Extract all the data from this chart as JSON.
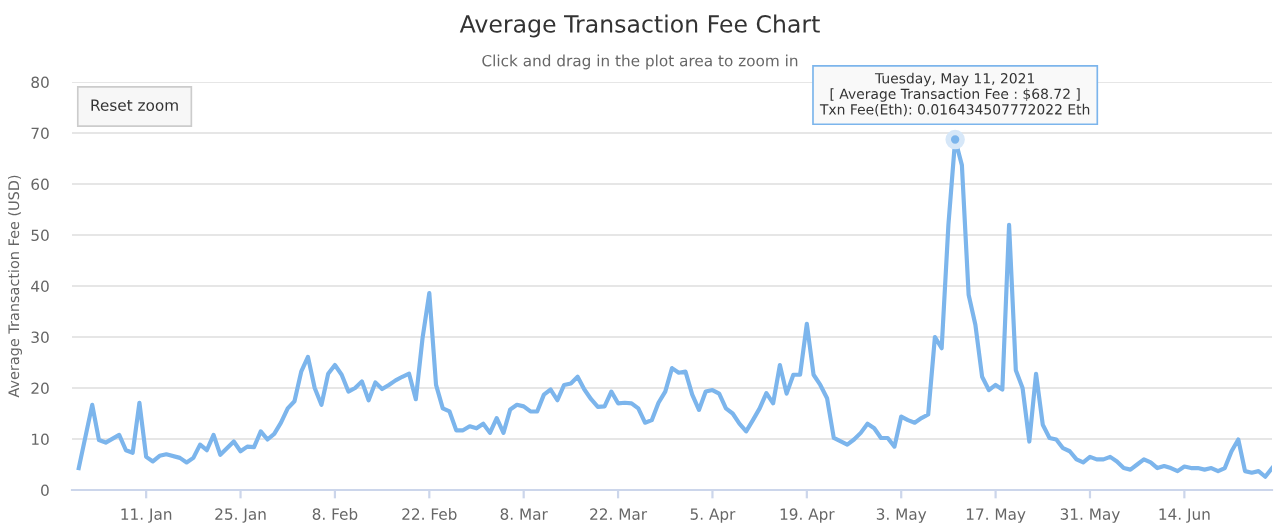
{
  "chart_data": {
    "type": "line",
    "title": "Average Transaction Fee Chart",
    "subtitle": "Click and drag in the plot area to zoom in",
    "ylabel": "Average Transaction Fee (USD)",
    "x": [
      "2021-01-01",
      "2021-01-03",
      "2021-01-04",
      "2021-01-05",
      "2021-01-07",
      "2021-01-08",
      "2021-01-09",
      "2021-01-10",
      "2021-01-11",
      "2021-01-12",
      "2021-01-13",
      "2021-01-14",
      "2021-01-16",
      "2021-01-17",
      "2021-01-18",
      "2021-01-19",
      "2021-01-20",
      "2021-01-21",
      "2021-01-22",
      "2021-01-24",
      "2021-01-25",
      "2021-01-26",
      "2021-01-27",
      "2021-01-28",
      "2021-01-29",
      "2021-01-30",
      "2021-01-31",
      "2021-02-01",
      "2021-02-02",
      "2021-02-03",
      "2021-02-04",
      "2021-02-05",
      "2021-02-06",
      "2021-02-07",
      "2021-02-08",
      "2021-02-09",
      "2021-02-10",
      "2021-02-11",
      "2021-02-12",
      "2021-02-13",
      "2021-02-14",
      "2021-02-15",
      "2021-02-16",
      "2021-02-17",
      "2021-02-18",
      "2021-02-19",
      "2021-02-20",
      "2021-02-21",
      "2021-02-22",
      "2021-02-23",
      "2021-02-24",
      "2021-02-25",
      "2021-02-26",
      "2021-02-27",
      "2021-02-28",
      "2021-03-01",
      "2021-03-02",
      "2021-03-03",
      "2021-03-04",
      "2021-03-05",
      "2021-03-06",
      "2021-03-07",
      "2021-03-08",
      "2021-03-09",
      "2021-03-10",
      "2021-03-11",
      "2021-03-12",
      "2021-03-13",
      "2021-03-14",
      "2021-03-15",
      "2021-03-16",
      "2021-03-17",
      "2021-03-18",
      "2021-03-19",
      "2021-03-20",
      "2021-03-21",
      "2021-03-22",
      "2021-03-23",
      "2021-03-24",
      "2021-03-25",
      "2021-03-26",
      "2021-03-27",
      "2021-03-28",
      "2021-03-29",
      "2021-03-30",
      "2021-03-31",
      "2021-04-01",
      "2021-04-02",
      "2021-04-03",
      "2021-04-04",
      "2021-04-05",
      "2021-04-06",
      "2021-04-07",
      "2021-04-08",
      "2021-04-09",
      "2021-04-10",
      "2021-04-11",
      "2021-04-12",
      "2021-04-13",
      "2021-04-14",
      "2021-04-15",
      "2021-04-16",
      "2021-04-17",
      "2021-04-18",
      "2021-04-19",
      "2021-04-20",
      "2021-04-21",
      "2021-04-22",
      "2021-04-23",
      "2021-04-25",
      "2021-04-26",
      "2021-04-27",
      "2021-04-28",
      "2021-04-29",
      "2021-04-30",
      "2021-05-01",
      "2021-05-02",
      "2021-05-03",
      "2021-05-04",
      "2021-05-05",
      "2021-05-06",
      "2021-05-07",
      "2021-05-08",
      "2021-05-09",
      "2021-05-10",
      "2021-05-11",
      "2021-05-12",
      "2021-05-13",
      "2021-05-14",
      "2021-05-15",
      "2021-05-16",
      "2021-05-17",
      "2021-05-18",
      "2021-05-19",
      "2021-05-20",
      "2021-05-21",
      "2021-05-22",
      "2021-05-23",
      "2021-05-24",
      "2021-05-25",
      "2021-05-26",
      "2021-05-27",
      "2021-05-28",
      "2021-05-29",
      "2021-05-30",
      "2021-05-31",
      "2021-06-01",
      "2021-06-02",
      "2021-06-03",
      "2021-06-04",
      "2021-06-05",
      "2021-06-06",
      "2021-06-07",
      "2021-06-08",
      "2021-06-09",
      "2021-06-10",
      "2021-06-11",
      "2021-06-12",
      "2021-06-13",
      "2021-06-14",
      "2021-06-15",
      "2021-06-16",
      "2021-06-17",
      "2021-06-18",
      "2021-06-19",
      "2021-06-20",
      "2021-06-21",
      "2021-06-22",
      "2021-06-23",
      "2021-06-24",
      "2021-06-25",
      "2021-06-26",
      "2021-06-27"
    ],
    "series": [
      {
        "color": "#7cb5ec",
        "values": [
          4.3,
          16.7,
          9.8,
          9.3,
          10.8,
          7.8,
          7.3,
          17.1,
          6.5,
          5.6,
          6.7,
          7,
          6.3,
          5.4,
          6.3,
          8.9,
          7.8,
          10.8,
          6.9,
          9.5,
          7.6,
          8.5,
          8.4,
          11.5,
          9.9,
          11,
          13.2,
          16,
          17.4,
          23.2,
          26.1,
          20,
          16.7,
          22.8,
          24.5,
          22.6,
          19.3,
          20,
          21.3,
          17.6,
          21.1,
          19.8,
          20.6,
          21.5,
          22.2,
          22.8,
          17.8,
          29.8,
          38.6,
          20.6,
          16,
          15.4,
          11.7,
          11.7,
          12.5,
          12.1,
          13,
          11.2,
          14.1,
          11.2,
          15.8,
          16.7,
          16.4,
          15.4,
          15.4,
          18.7,
          19.7,
          17.6,
          20.6,
          20.9,
          22.2,
          19.7,
          17.8,
          16.3,
          16.4,
          19.3,
          17,
          17.1,
          17,
          16,
          13.2,
          13.7,
          17.1,
          19.3,
          23.9,
          23,
          23.2,
          18.7,
          15.7,
          19.3,
          19.6,
          18.9,
          16,
          15,
          13,
          11.5,
          13.7,
          16,
          19,
          17,
          24.5,
          18.9,
          22.6,
          22.6,
          32.6,
          22.6,
          20.6,
          18,
          10.2,
          8.9,
          9.9,
          11.2,
          13,
          12.1,
          10.2,
          10.2,
          8.5,
          14.4,
          13.7,
          13.2,
          14.1,
          14.8,
          30,
          27.8,
          52,
          68.72,
          63.7,
          38.3,
          32.4,
          22.2,
          19.6,
          20.6,
          19.7,
          52,
          23.5,
          20,
          9.5,
          22.8,
          12.8,
          10.2,
          9.9,
          8.2,
          7.6,
          6,
          5.4,
          6.5,
          6,
          6,
          6.5,
          5.6,
          4.3,
          4,
          5,
          6,
          5.4,
          4.3,
          4.7,
          4.3,
          3.7,
          4.6,
          4.3,
          4.3,
          4,
          4.3,
          3.7,
          4.3,
          7.6,
          9.9,
          3.7,
          3.4,
          3.7,
          2.6,
          4.3
        ]
      }
    ],
    "xlim": [
      "2020-12-31",
      "2021-06-27"
    ],
    "xticks": [
      {
        "value": "2021-01-11",
        "label": "11. Jan"
      },
      {
        "value": "2021-01-25",
        "label": "25. Jan"
      },
      {
        "value": "2021-02-08",
        "label": "8. Feb"
      },
      {
        "value": "2021-02-22",
        "label": "22. Feb"
      },
      {
        "value": "2021-03-08",
        "label": "8. Mar"
      },
      {
        "value": "2021-03-22",
        "label": "22. Mar"
      },
      {
        "value": "2021-04-05",
        "label": "5. Apr"
      },
      {
        "value": "2021-04-19",
        "label": "19. Apr"
      },
      {
        "value": "2021-05-03",
        "label": "3. May"
      },
      {
        "value": "2021-05-17",
        "label": "17. May"
      },
      {
        "value": "2021-05-31",
        "label": "31. May"
      },
      {
        "value": "2021-06-14",
        "label": "14. Jun"
      }
    ],
    "ylim": [
      0,
      80
    ],
    "yticks": [
      0,
      10,
      20,
      30,
      40,
      50,
      60,
      70,
      80
    ],
    "grid": "y",
    "marker": "none",
    "line_style": "solid",
    "annotations": [
      "Reset zoom",
      {
        "text": "Tuesday, May 11, 2021\n[ Average Transaction Fee : $68.72 ]\nTxn Fee(Eth): 0.016434507772022 Eth",
        "x": "2021-05-11",
        "y": 68.72
      }
    ]
  }
}
